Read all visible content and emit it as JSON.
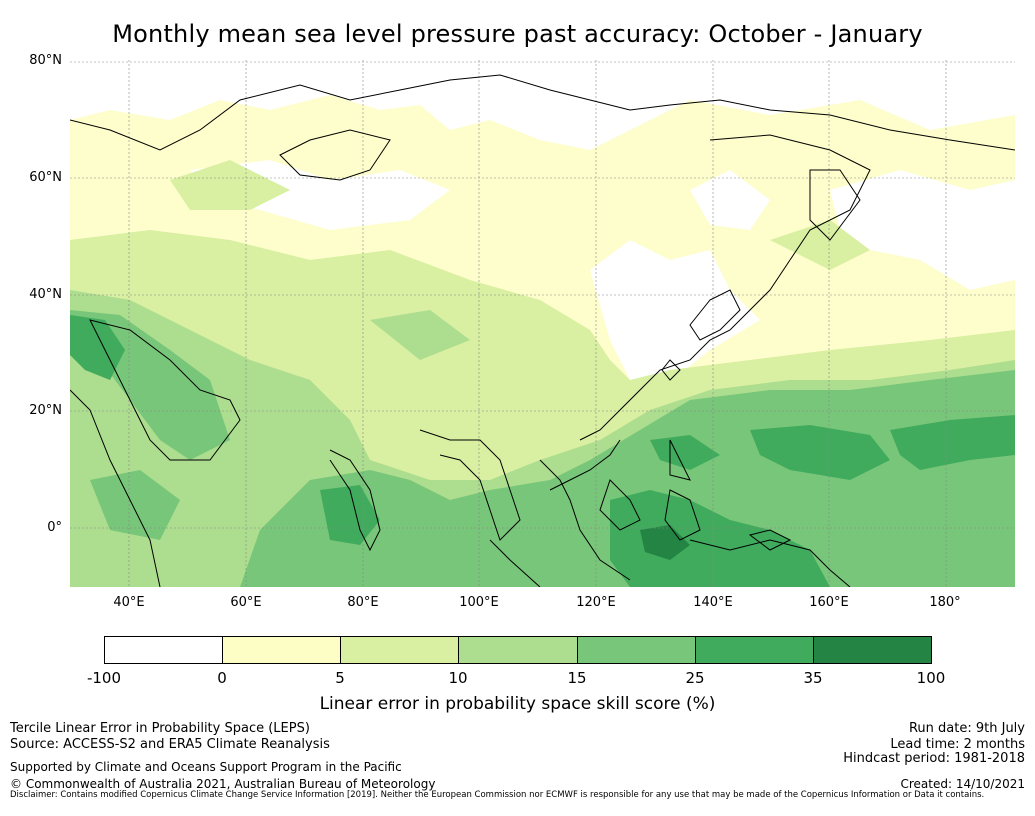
{
  "title": "Monthly mean sea level pressure past accuracy: October - January",
  "map": {
    "lat_labels": [
      "80°N",
      "60°N",
      "40°N",
      "20°N",
      "0°"
    ],
    "lon_labels": [
      "40°E",
      "60°E",
      "80°E",
      "100°E",
      "120°E",
      "140°E",
      "160°E",
      "180°"
    ],
    "lat_range": [
      -10,
      80
    ],
    "lon_range": [
      30,
      192
    ],
    "gridlines": true,
    "coastlines": true,
    "field": "Tercile LEPS skill score (%)"
  },
  "colorbar": {
    "ticks": [
      "-100",
      "0",
      "5",
      "10",
      "15",
      "25",
      "35",
      "100"
    ],
    "colors": [
      "#ffffff",
      "#fdfec5",
      "#d9efa1",
      "#addd8e",
      "#78c679",
      "#41ab5d",
      "#238443"
    ],
    "label": "Linear error in probability space skill score (%)"
  },
  "footer": {
    "left_line1": "Tercile Linear Error in Probability Space (LEPS)",
    "left_line2": "Source: ACCESS-S2 and ERA5 Climate Reanalysis",
    "left_line3": "Supported by Climate and Oceans Support Program in the Pacific",
    "left_line4": "© Commonwealth of Australia 2021, Australian Bureau of Meteorology",
    "right_line1": "Run date: 9th July",
    "right_line2": "Lead time: 2 months",
    "right_line3": "Hindcast period: 1981-2018",
    "right_line4": "Created: 14/10/2021",
    "disclaimer": "Disclaimer: Contains modified Copernicus Climate Change Service Information [2019]. Neither the European Commission nor ECMWF is responsible for any use that may be made of the Copernicus Information or Data it contains."
  }
}
